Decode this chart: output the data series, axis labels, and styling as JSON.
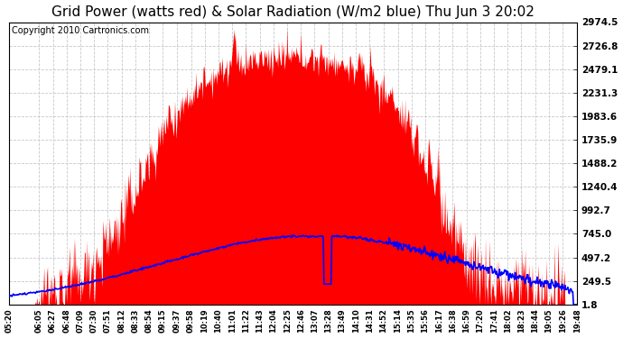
{
  "title": "Grid Power (watts red) & Solar Radiation (W/m2 blue) Thu Jun 3 20:02",
  "copyright": "Copyright 2010 Cartronics.com",
  "yticks": [
    1.8,
    249.5,
    497.2,
    745.0,
    992.7,
    1240.4,
    1488.2,
    1735.9,
    1983.6,
    2231.3,
    2479.1,
    2726.8,
    2974.5
  ],
  "ymin": 1.8,
  "ymax": 2974.5,
  "xtick_labels": [
    "05:20",
    "06:05",
    "06:27",
    "06:48",
    "07:09",
    "07:30",
    "07:51",
    "08:12",
    "08:33",
    "08:54",
    "09:15",
    "09:37",
    "09:58",
    "10:19",
    "10:40",
    "11:01",
    "11:22",
    "11:43",
    "12:04",
    "12:25",
    "12:46",
    "13:07",
    "13:28",
    "13:49",
    "14:10",
    "14:31",
    "14:52",
    "15:14",
    "15:35",
    "15:56",
    "16:17",
    "16:38",
    "16:59",
    "17:20",
    "17:41",
    "18:02",
    "18:23",
    "18:44",
    "19:05",
    "19:26",
    "19:48"
  ],
  "bg_color": "#ffffff",
  "red_color": "#ff0000",
  "blue_color": "#0000ff",
  "grid_color": "#c8c8c8",
  "title_fontsize": 11,
  "copyright_fontsize": 7
}
